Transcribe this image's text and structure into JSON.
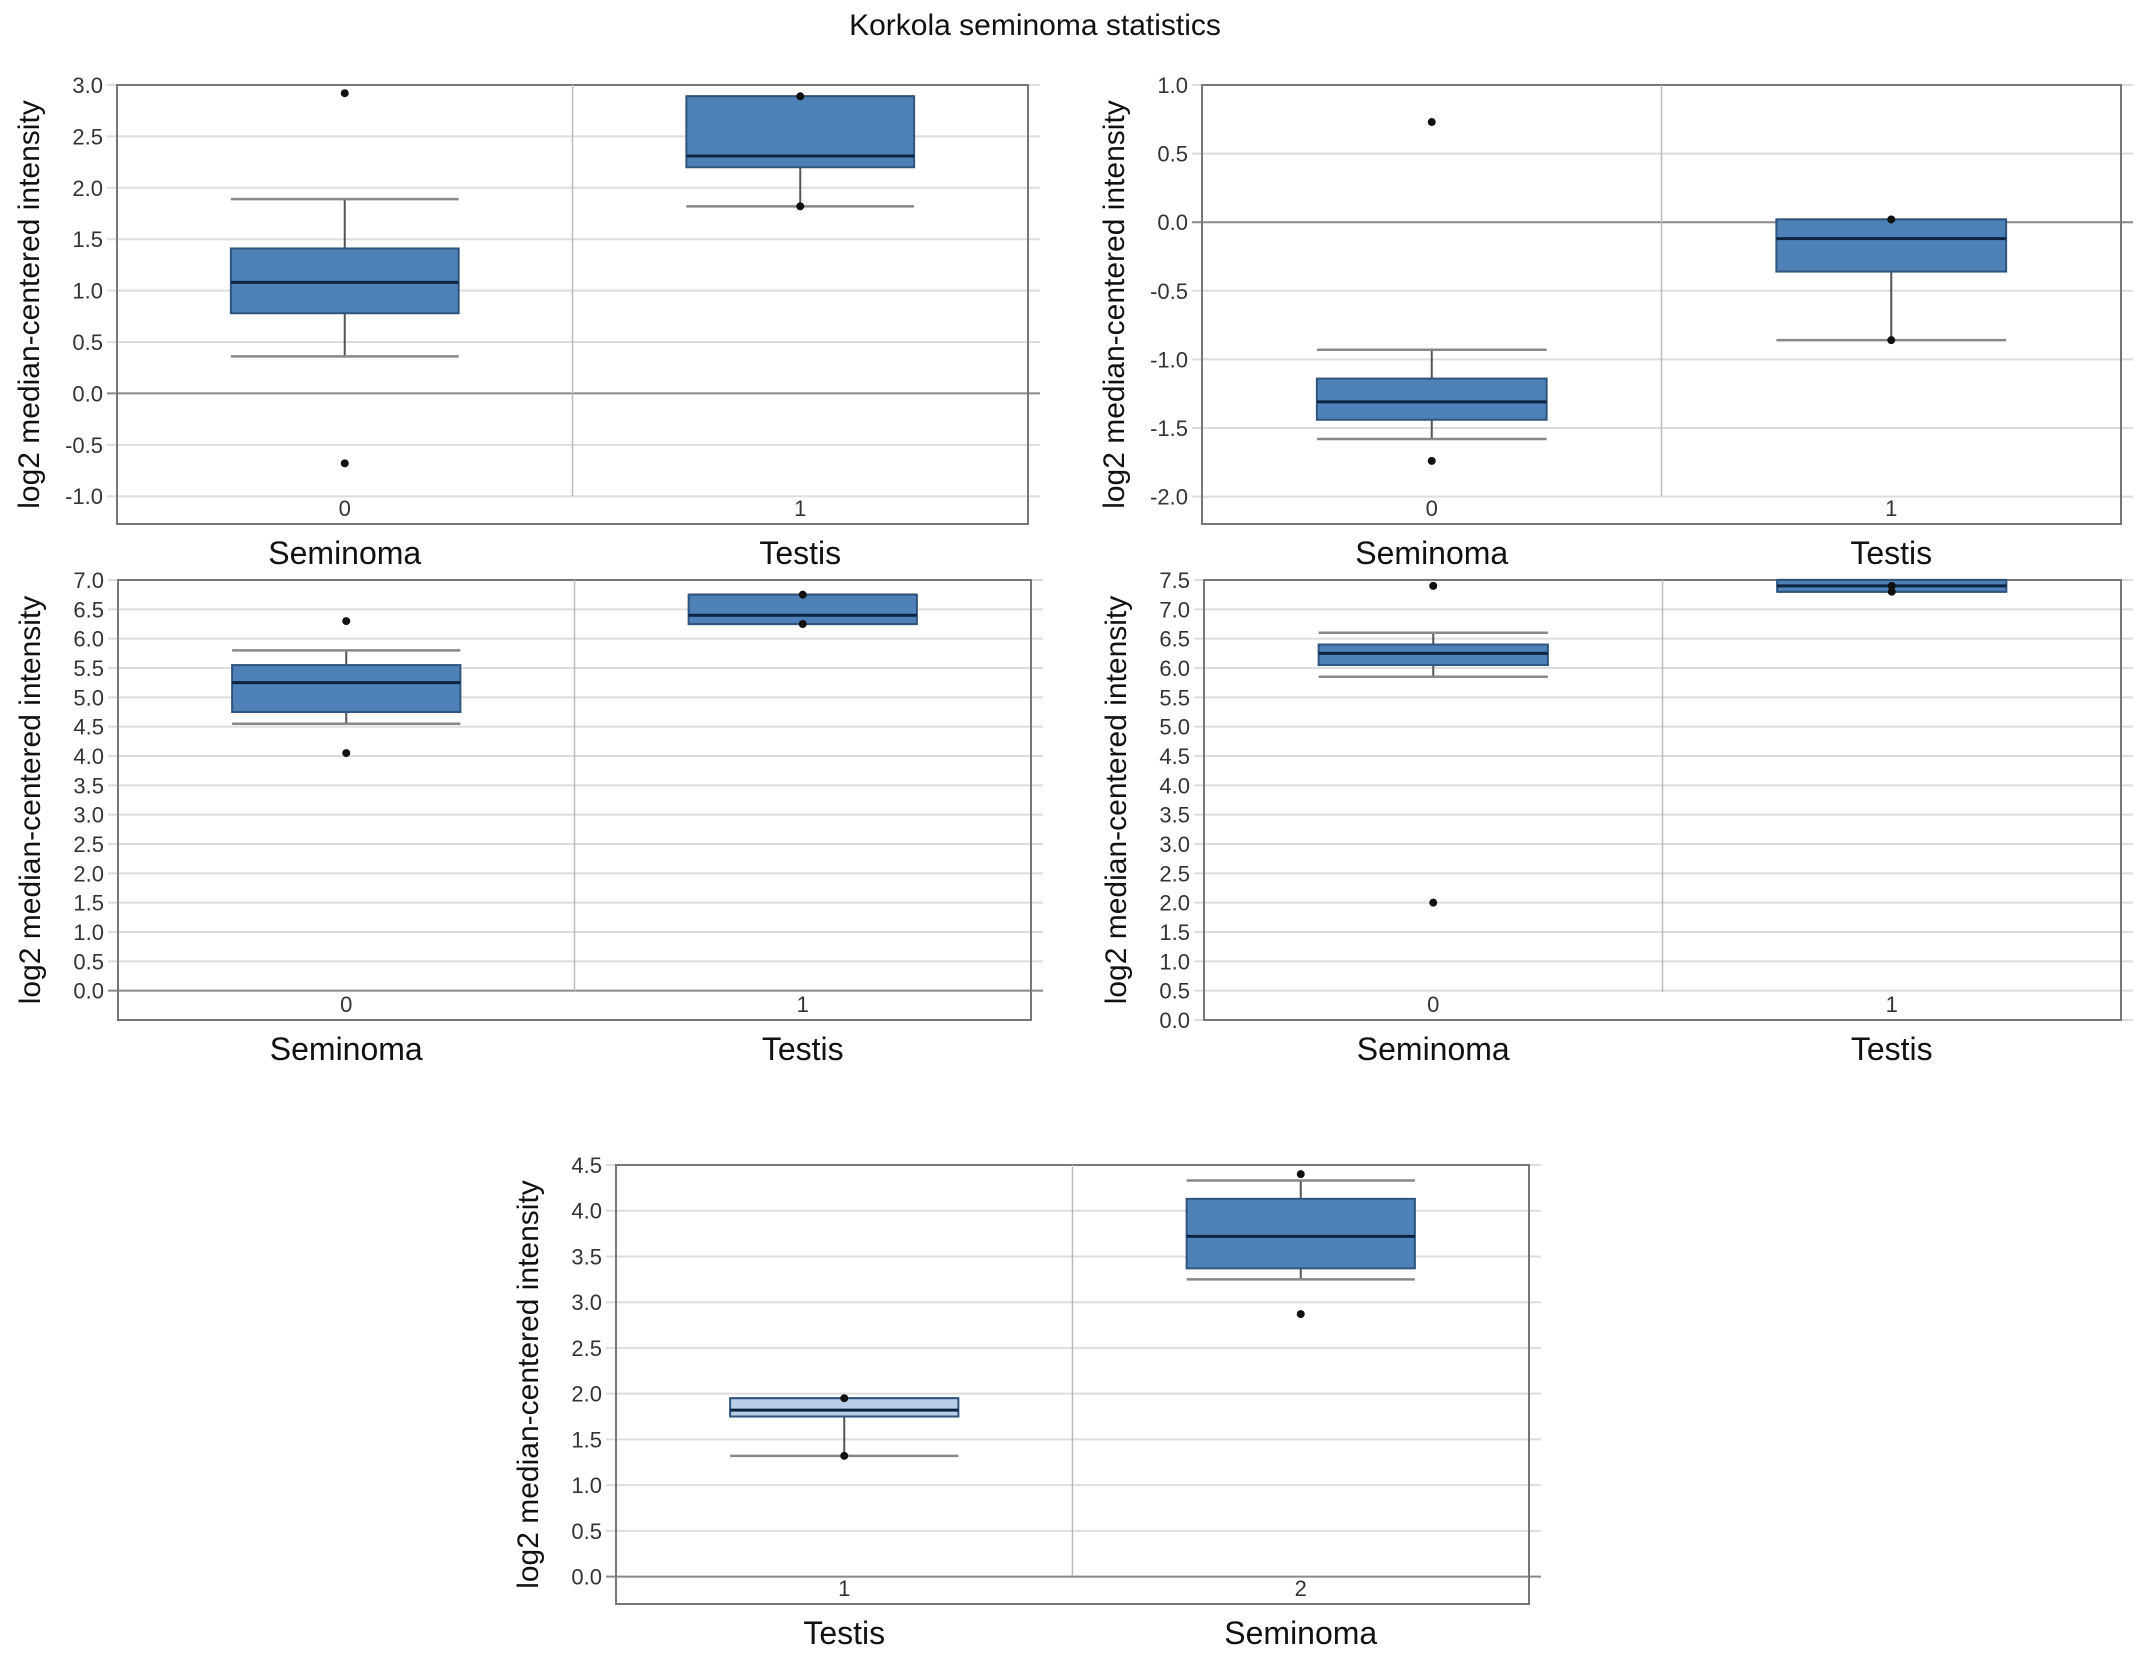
{
  "title": "Korkola seminoma statistics",
  "chart_data": [
    {
      "type": "box",
      "ylabel": "log2 median-centered intensity",
      "ylim": [
        -1.27,
        3.0
      ],
      "yticks": [
        "3.0",
        "2.5",
        "2.0",
        "1.5",
        "1.0",
        "0.5",
        "0.0",
        "-0.5",
        "-1.0"
      ],
      "groups": [
        {
          "code": "0",
          "name": "Seminoma",
          "whisker_low": 0.36,
          "q1": 0.78,
          "median": 1.08,
          "q3": 1.41,
          "whisker_high": 1.89,
          "points": [
            2.92,
            -0.68
          ],
          "color": "#4f81b9"
        },
        {
          "code": "1",
          "name": "Testis",
          "whisker_low": 1.82,
          "q1": 2.2,
          "median": 2.31,
          "q3": 2.89,
          "whisker_high": 2.89,
          "points": [
            2.89,
            1.82
          ],
          "color": "#4f81b9"
        }
      ]
    },
    {
      "type": "box",
      "ylabel": "log2 median-centered intensity",
      "ylim": [
        -2.2,
        1.0
      ],
      "yticks": [
        "1.0",
        "0.5",
        "0.0",
        "-0.5",
        "-1.0",
        "-1.5",
        "-2.0"
      ],
      "groups": [
        {
          "code": "0",
          "name": "Seminoma",
          "whisker_low": -1.58,
          "q1": -1.44,
          "median": -1.31,
          "q3": -1.14,
          "whisker_high": -0.93,
          "points": [
            0.73,
            -1.74
          ],
          "color": "#4f81b9"
        },
        {
          "code": "1",
          "name": "Testis",
          "whisker_low": -0.86,
          "q1": -0.36,
          "median": -0.12,
          "q3": 0.02,
          "whisker_high": 0.02,
          "points": [
            0.02,
            -0.86
          ],
          "color": "#4f81b9"
        }
      ]
    },
    {
      "type": "box",
      "ylabel": "log2 median-centered intensity",
      "ylim": [
        -0.5,
        7.0
      ],
      "yticks": [
        "7.0",
        "6.5",
        "6.0",
        "5.5",
        "5.0",
        "4.5",
        "4.0",
        "3.5",
        "3.0",
        "2.5",
        "2.0",
        "1.5",
        "1.0",
        "0.5",
        "0.0"
      ],
      "groups": [
        {
          "code": "0",
          "name": "Seminoma",
          "whisker_low": 4.55,
          "q1": 4.75,
          "median": 5.25,
          "q3": 5.55,
          "whisker_high": 5.8,
          "points": [
            6.3,
            4.05
          ],
          "color": "#4f81b9"
        },
        {
          "code": "1",
          "name": "Testis",
          "whisker_low": 6.25,
          "q1": 6.25,
          "median": 6.4,
          "q3": 6.75,
          "whisker_high": 6.75,
          "points": [
            6.75,
            6.25
          ],
          "color": "#4f81b9"
        }
      ]
    },
    {
      "type": "box",
      "ylabel": "log2 median-centered intensity",
      "ylim": [
        0.0,
        7.5
      ],
      "yticks": [
        "7.5",
        "7.0",
        "6.5",
        "6.0",
        "5.5",
        "5.0",
        "4.5",
        "4.0",
        "3.5",
        "3.0",
        "2.5",
        "2.0",
        "1.5",
        "1.0",
        "0.5",
        "0.0"
      ],
      "groups": [
        {
          "code": "0",
          "name": "Seminoma",
          "whisker_low": 5.85,
          "q1": 6.05,
          "median": 6.25,
          "q3": 6.4,
          "whisker_high": 6.6,
          "points": [
            7.4,
            2.0
          ],
          "color": "#4f81b9"
        },
        {
          "code": "1",
          "name": "Testis",
          "whisker_low": 7.3,
          "q1": 7.3,
          "median": 7.4,
          "q3": 7.5,
          "whisker_high": 7.5,
          "points": [
            7.4,
            7.3
          ],
          "color": "#4f81b9"
        }
      ]
    },
    {
      "type": "box",
      "ylabel": "log2 median-centered intensity",
      "ylim": [
        -0.3,
        4.5
      ],
      "yticks": [
        "4.5",
        "4.0",
        "3.5",
        "3.0",
        "2.5",
        "2.0",
        "1.5",
        "1.0",
        "0.5",
        "0.0"
      ],
      "groups": [
        {
          "code": "1",
          "name": "Testis",
          "whisker_low": 1.32,
          "q1": 1.75,
          "median": 1.82,
          "q3": 1.95,
          "whisker_high": 1.95,
          "points": [
            1.95,
            1.32
          ],
          "color": "#b8cde6"
        },
        {
          "code": "2",
          "name": "Seminoma",
          "whisker_low": 3.25,
          "q1": 3.37,
          "median": 3.72,
          "q3": 4.13,
          "whisker_high": 4.33,
          "points": [
            4.4,
            2.87
          ],
          "color": "#4f81b9"
        }
      ]
    }
  ]
}
